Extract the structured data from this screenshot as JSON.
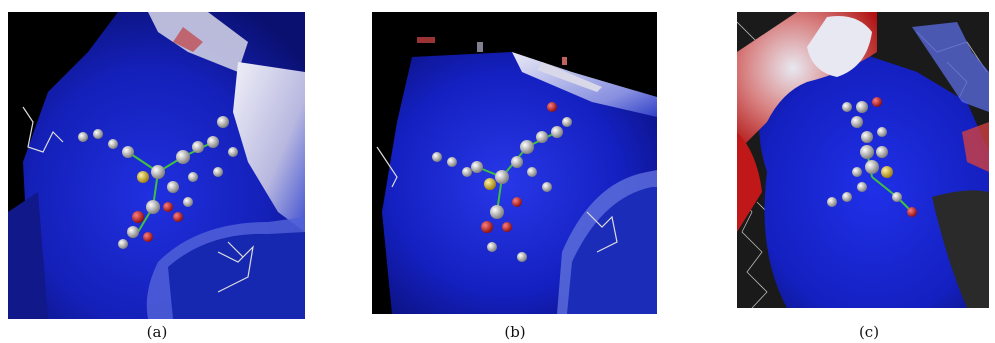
{
  "figure": {
    "panels": [
      {
        "label": "(a)",
        "content": "docking-pose-render"
      },
      {
        "label": "(b)",
        "content": "docking-pose-render"
      },
      {
        "label": "(c)",
        "content": "docking-pose-render"
      }
    ],
    "colors": {
      "surface_blue": "#1420c8",
      "surface_white": "#e6e6f0",
      "surface_red": "#c41414",
      "atom_carbon": "#c8c8c8",
      "atom_oxygen": "#d02020",
      "atom_sulfur": "#d8c020",
      "bond_green": "#30c030",
      "background": "#000000"
    }
  }
}
